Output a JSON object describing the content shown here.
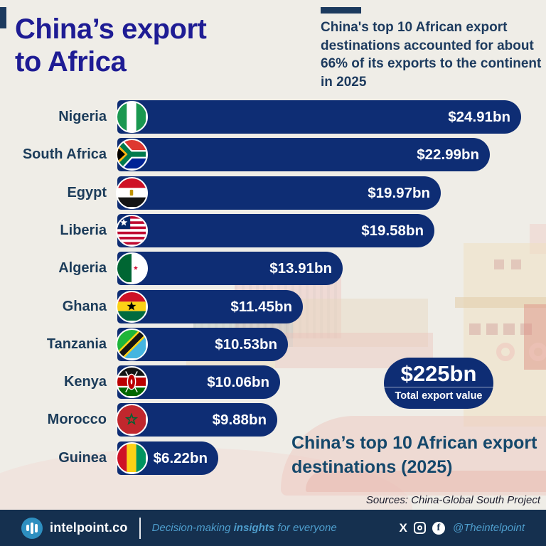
{
  "header": {
    "title_line1": "China’s export",
    "title_line2": "to Africa",
    "subtitle": "China's top 10 African export destinations accounted for about 66% of its exports to the continent in 2025"
  },
  "chart_data": {
    "type": "bar",
    "orientation": "horizontal",
    "title": "China’s top 10 African export destinations (2025)",
    "unit": "USD billion",
    "xlim": [
      0,
      24.91
    ],
    "grid": false,
    "legend": "none",
    "categories": [
      "Nigeria",
      "South Africa",
      "Egypt",
      "Liberia",
      "Algeria",
      "Ghana",
      "Tanzania",
      "Kenya",
      "Morocco",
      "Guinea"
    ],
    "values": [
      24.91,
      22.99,
      19.97,
      19.58,
      13.91,
      11.45,
      10.53,
      10.06,
      9.88,
      6.22
    ],
    "value_labels": [
      "$24.91bn",
      "$22.99bn",
      "$19.97bn",
      "$19.58bn",
      "$13.91bn",
      "$11.45bn",
      "$10.53bn",
      "$10.06bn",
      "$9.88bn",
      "$6.22bn"
    ],
    "flag_icons": [
      "nigeria",
      "south-africa",
      "egypt",
      "liberia",
      "algeria",
      "ghana",
      "tanzania",
      "kenya",
      "morocco",
      "guinea"
    ],
    "bar_color": "#0E2D74"
  },
  "total_badge": {
    "value": "$225bn",
    "label": "Total export value"
  },
  "caption": "China’s top 10 African export destinations (2025)",
  "source": "Sources: China-Global South Project",
  "footer": {
    "brand": "intelpoint.co",
    "logo_icon": "bar-chart-icon",
    "tagline_prefix": "Decision-making ",
    "tagline_bold": "insights",
    "tagline_suffix": " for everyone",
    "social_icons": [
      "x-icon",
      "instagram-icon",
      "facebook-icon"
    ],
    "handle": "@Theintelpoint"
  },
  "colors": {
    "background": "#EFEDE7",
    "bar": "#0E2D74",
    "title": "#1E1C94",
    "subtitle_text": "#1C3A5E",
    "country_label": "#1C3C5A",
    "caption": "#15486B",
    "badge_bg": "#0E2D74",
    "footer_bg": "#15304F",
    "logo_accent": "#2E8FC0",
    "tagline": "#4E9ECD"
  }
}
